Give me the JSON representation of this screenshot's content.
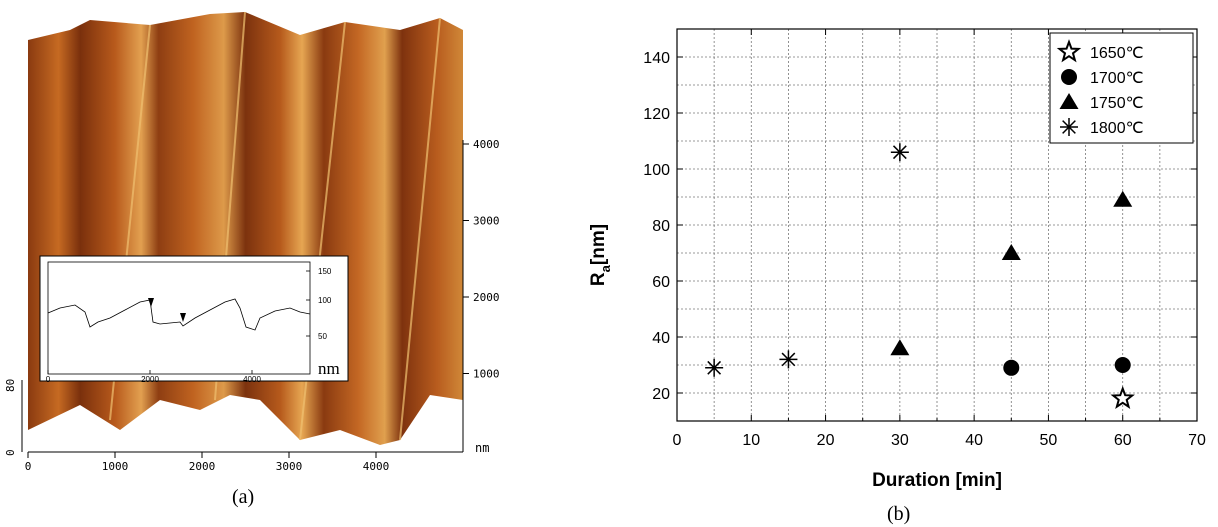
{
  "panel_a": {
    "caption": "(a)",
    "x_ticks": [
      "0",
      "1000",
      "2000",
      "3000",
      "4000"
    ],
    "x_unit": "nm",
    "y_ticks": [
      "1000",
      "2000",
      "3000",
      "4000"
    ],
    "z_ticks": [
      "0",
      "80"
    ],
    "inset": {
      "x_ticks": [
        "0",
        "2000",
        "4000"
      ],
      "y_ticks": [
        "50",
        "100",
        "150"
      ],
      "y_unit": "nm"
    }
  },
  "chart_data": {
    "type": "scatter",
    "caption": "(b)",
    "xlabel": "Duration [min]",
    "ylabel": "R",
    "ylabel_subscript": "a",
    "ylabel_suffix": "[nm]",
    "xlim": [
      0,
      70
    ],
    "ylim": [
      10,
      150
    ],
    "x_ticks": [
      0,
      10,
      20,
      30,
      40,
      50,
      60,
      70
    ],
    "y_ticks": [
      20,
      40,
      60,
      80,
      100,
      120,
      140
    ],
    "grid": true,
    "legend_position": "top-right",
    "series": [
      {
        "name": "1650℃",
        "marker": "star",
        "points": [
          [
            60,
            18
          ]
        ]
      },
      {
        "name": "1700℃",
        "marker": "circle",
        "points": [
          [
            45,
            29
          ],
          [
            60,
            30
          ]
        ]
      },
      {
        "name": "1750℃",
        "marker": "triangle",
        "points": [
          [
            30,
            36
          ],
          [
            45,
            70
          ],
          [
            60,
            89
          ]
        ]
      },
      {
        "name": "1800℃",
        "marker": "asterisk",
        "points": [
          [
            5,
            29
          ],
          [
            15,
            32
          ],
          [
            30,
            106
          ]
        ]
      }
    ]
  }
}
